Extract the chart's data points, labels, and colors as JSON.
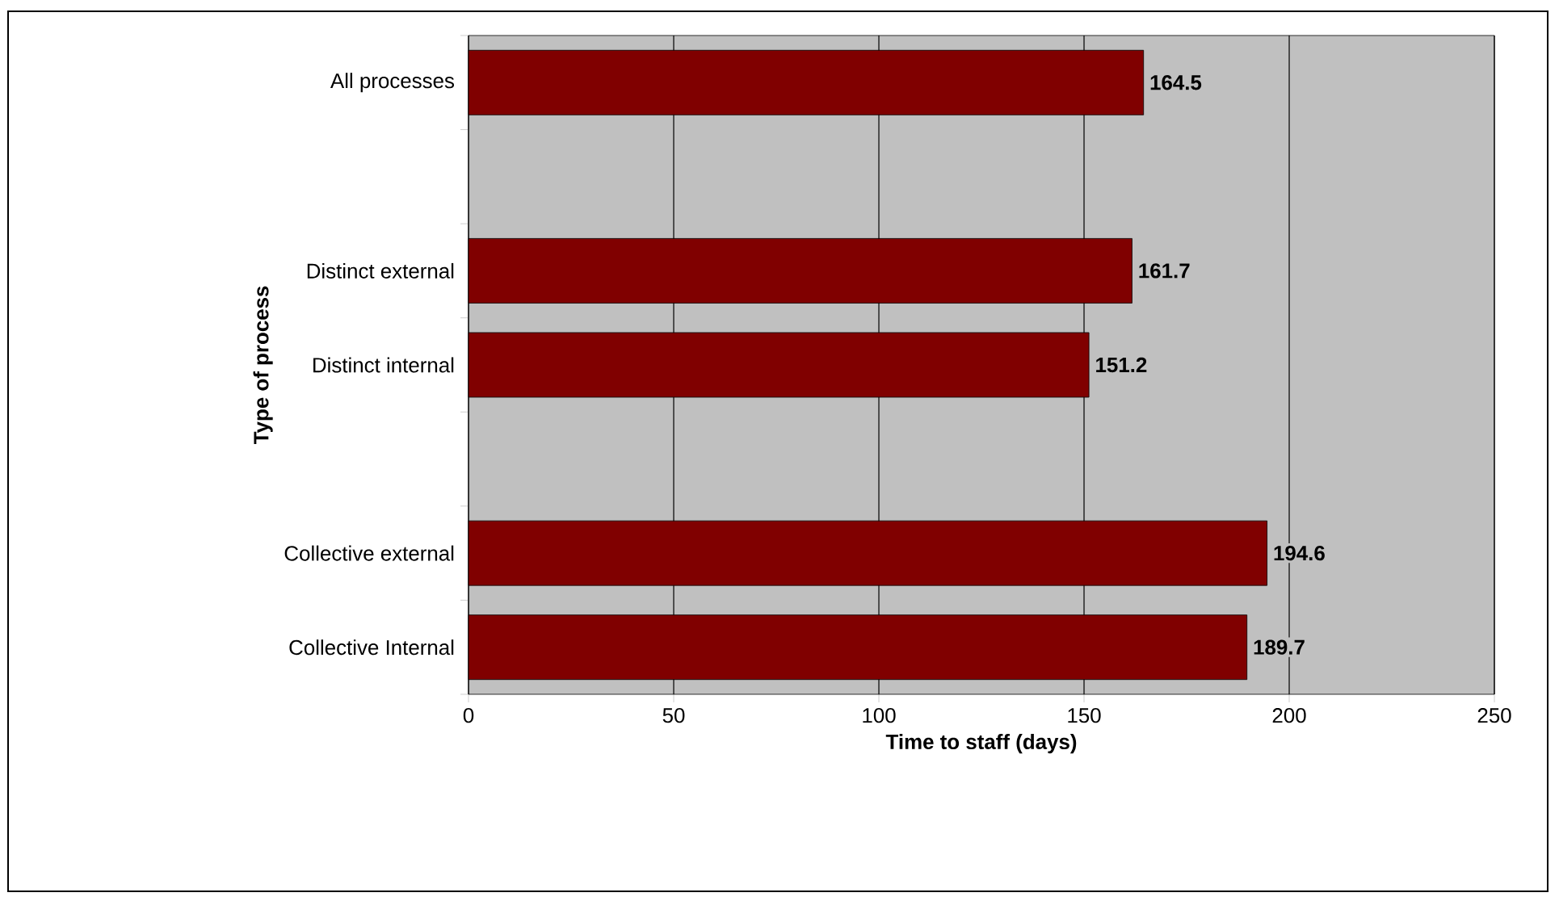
{
  "chart_data": {
    "type": "bar",
    "orientation": "horizontal",
    "xlabel": "Time to staff (days)",
    "ylabel": "Type of process",
    "categories": [
      "All processes",
      null,
      "Distinct external",
      "Distinct internal",
      null,
      "Collective external",
      "Collective Internal"
    ],
    "values": [
      164.5,
      null,
      161.7,
      151.2,
      null,
      194.6,
      189.7
    ],
    "value_labels": [
      "164.5",
      null,
      "161.7",
      "151.2",
      null,
      "194.6",
      "189.7"
    ],
    "color": "#800000",
    "xlim": [
      0,
      250
    ],
    "xticks": [
      0,
      50,
      100,
      150,
      200,
      250
    ],
    "grid": "x"
  }
}
